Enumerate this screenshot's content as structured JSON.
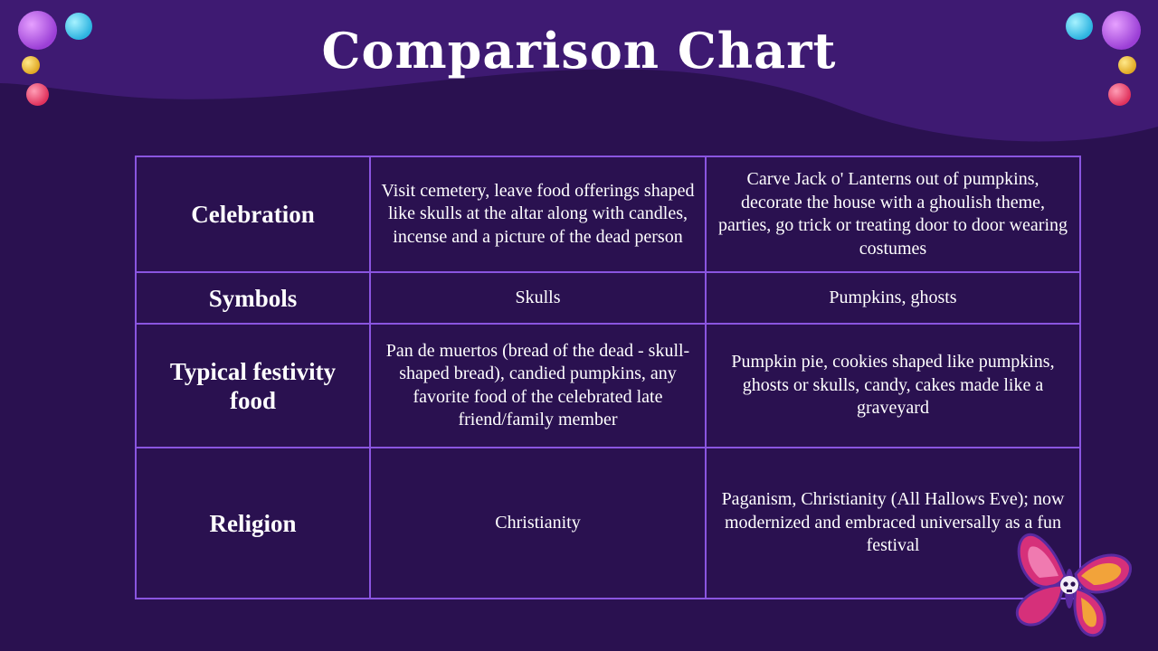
{
  "slide": {
    "title": "Comparison Chart"
  },
  "table": {
    "rows": [
      {
        "label": "Celebration",
        "col1": "Visit cemetery,  leave food offerings shaped like skulls at the altar along with candles, incense and a picture of the dead person",
        "col2": "Carve Jack o' Lanterns out of pumpkins, decorate the house with a ghoulish theme, parties, go trick or treating door to door wearing costumes"
      },
      {
        "label": "Symbols",
        "col1": "Skulls",
        "col2": "Pumpkins, ghosts"
      },
      {
        "label": "Typical festivity food",
        "col1": "Pan de muertos (bread of the dead - skull-shaped bread), candied pumpkins, any favorite food of the celebrated  late friend/family member",
        "col2": "Pumpkin pie, cookies shaped like pumpkins, ghosts or skulls, candy, cakes made like a graveyard"
      },
      {
        "label": "Religion",
        "col1": "Christianity",
        "col2": "Paganism, Christianity (All Hallows Eve); now modernized and embraced universally as a fun festival"
      }
    ]
  },
  "colors": {
    "background": "#2a1150",
    "wave": "#3e1a72",
    "border": "#8a55e0",
    "text": "#ffffff"
  },
  "icons": {
    "decorations": [
      "purple-dot-icon",
      "cyan-dot-icon",
      "yellow-dot-icon",
      "pink-dot-icon"
    ],
    "corner_art": "butterfly-icon"
  }
}
